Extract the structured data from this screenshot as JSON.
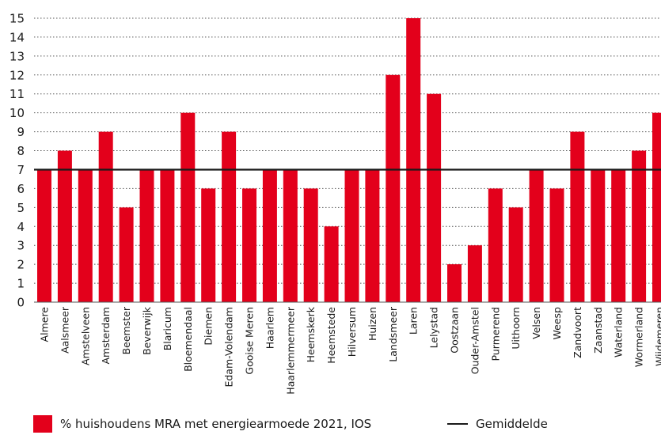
{
  "chart_data": {
    "type": "bar",
    "categories": [
      "Almere",
      "Aalsmeer",
      "Amstelveen",
      "Amsterdam",
      "Beemster",
      "Beverwijk",
      "Blaricum",
      "Bloemendaal",
      "Diemen",
      "Edam-Volendam",
      "Gooise Meren",
      "Haarlem",
      "Haarlemmermeer",
      "Heemskerk",
      "Heemstede",
      "Hilversum",
      "Huizen",
      "Landsmeer",
      "Laren",
      "Lelystad",
      "Oostzaan",
      "Ouder-Amstel",
      "Purmerend",
      "Uithoorn",
      "Velsen",
      "Weesp",
      "Zandvoort",
      "Zaanstad",
      "Waterland",
      "Wormerland",
      "Wijdemeren"
    ],
    "series": [
      {
        "name": "% huishoudens MRA met energiearmoede 2021, IOS",
        "values": [
          7,
          8,
          7,
          9,
          5,
          7,
          7,
          10,
          6,
          9,
          6,
          7,
          7,
          6,
          4,
          7,
          7,
          12,
          15,
          11,
          2,
          3,
          6,
          5,
          7,
          6,
          9,
          7,
          7,
          8,
          10
        ]
      }
    ],
    "average": {
      "name": "Gemiddelde",
      "value": 7
    },
    "ylim": [
      0,
      15
    ],
    "yticks": [
      0,
      1,
      2,
      3,
      4,
      5,
      6,
      7,
      8,
      9,
      10,
      11,
      12,
      13,
      14,
      15
    ],
    "grid": "dotted horizontal",
    "legend_position": "bottom",
    "title": "",
    "xlabel": "",
    "ylabel": "",
    "colors": {
      "bar": "#e3001b",
      "average_line": "#1a1a1a",
      "grid": "#555555"
    }
  }
}
